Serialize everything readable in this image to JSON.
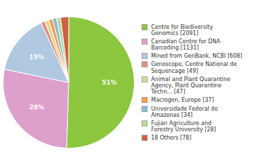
{
  "chart_data": {
    "type": "pie",
    "categories": [
      "Centre for Biodiversity\nGenomics [2091]",
      "Canadian Centre for DNA\nBarcoding [1131]",
      "Mined from GenBank, NCBI [608]",
      "Genoscope, Centre National de\nSequencage [49]",
      "Animal and Plant Quarantine\nAgency, Plant Quarantine\nTechn... [47]",
      "Macrogen, Europe [37]",
      "Universidade Federal do\nAmazonas [34]",
      "Fujian Agriculture and\nForestry University [28]",
      "18 Others [78]"
    ],
    "values": [
      51,
      28,
      15,
      1,
      1,
      1,
      1,
      1,
      2
    ],
    "value_labels": [
      "51%",
      "28%",
      "15%",
      null,
      null,
      null,
      null,
      null,
      null
    ],
    "colors": [
      "#8dc63f",
      "#dda0cc",
      "#b0c8e0",
      "#e09080",
      "#d8d898",
      "#f0a050",
      "#88b8d8",
      "#b8d898",
      "#cc6040"
    ],
    "data_labels": true,
    "legend": "right"
  }
}
